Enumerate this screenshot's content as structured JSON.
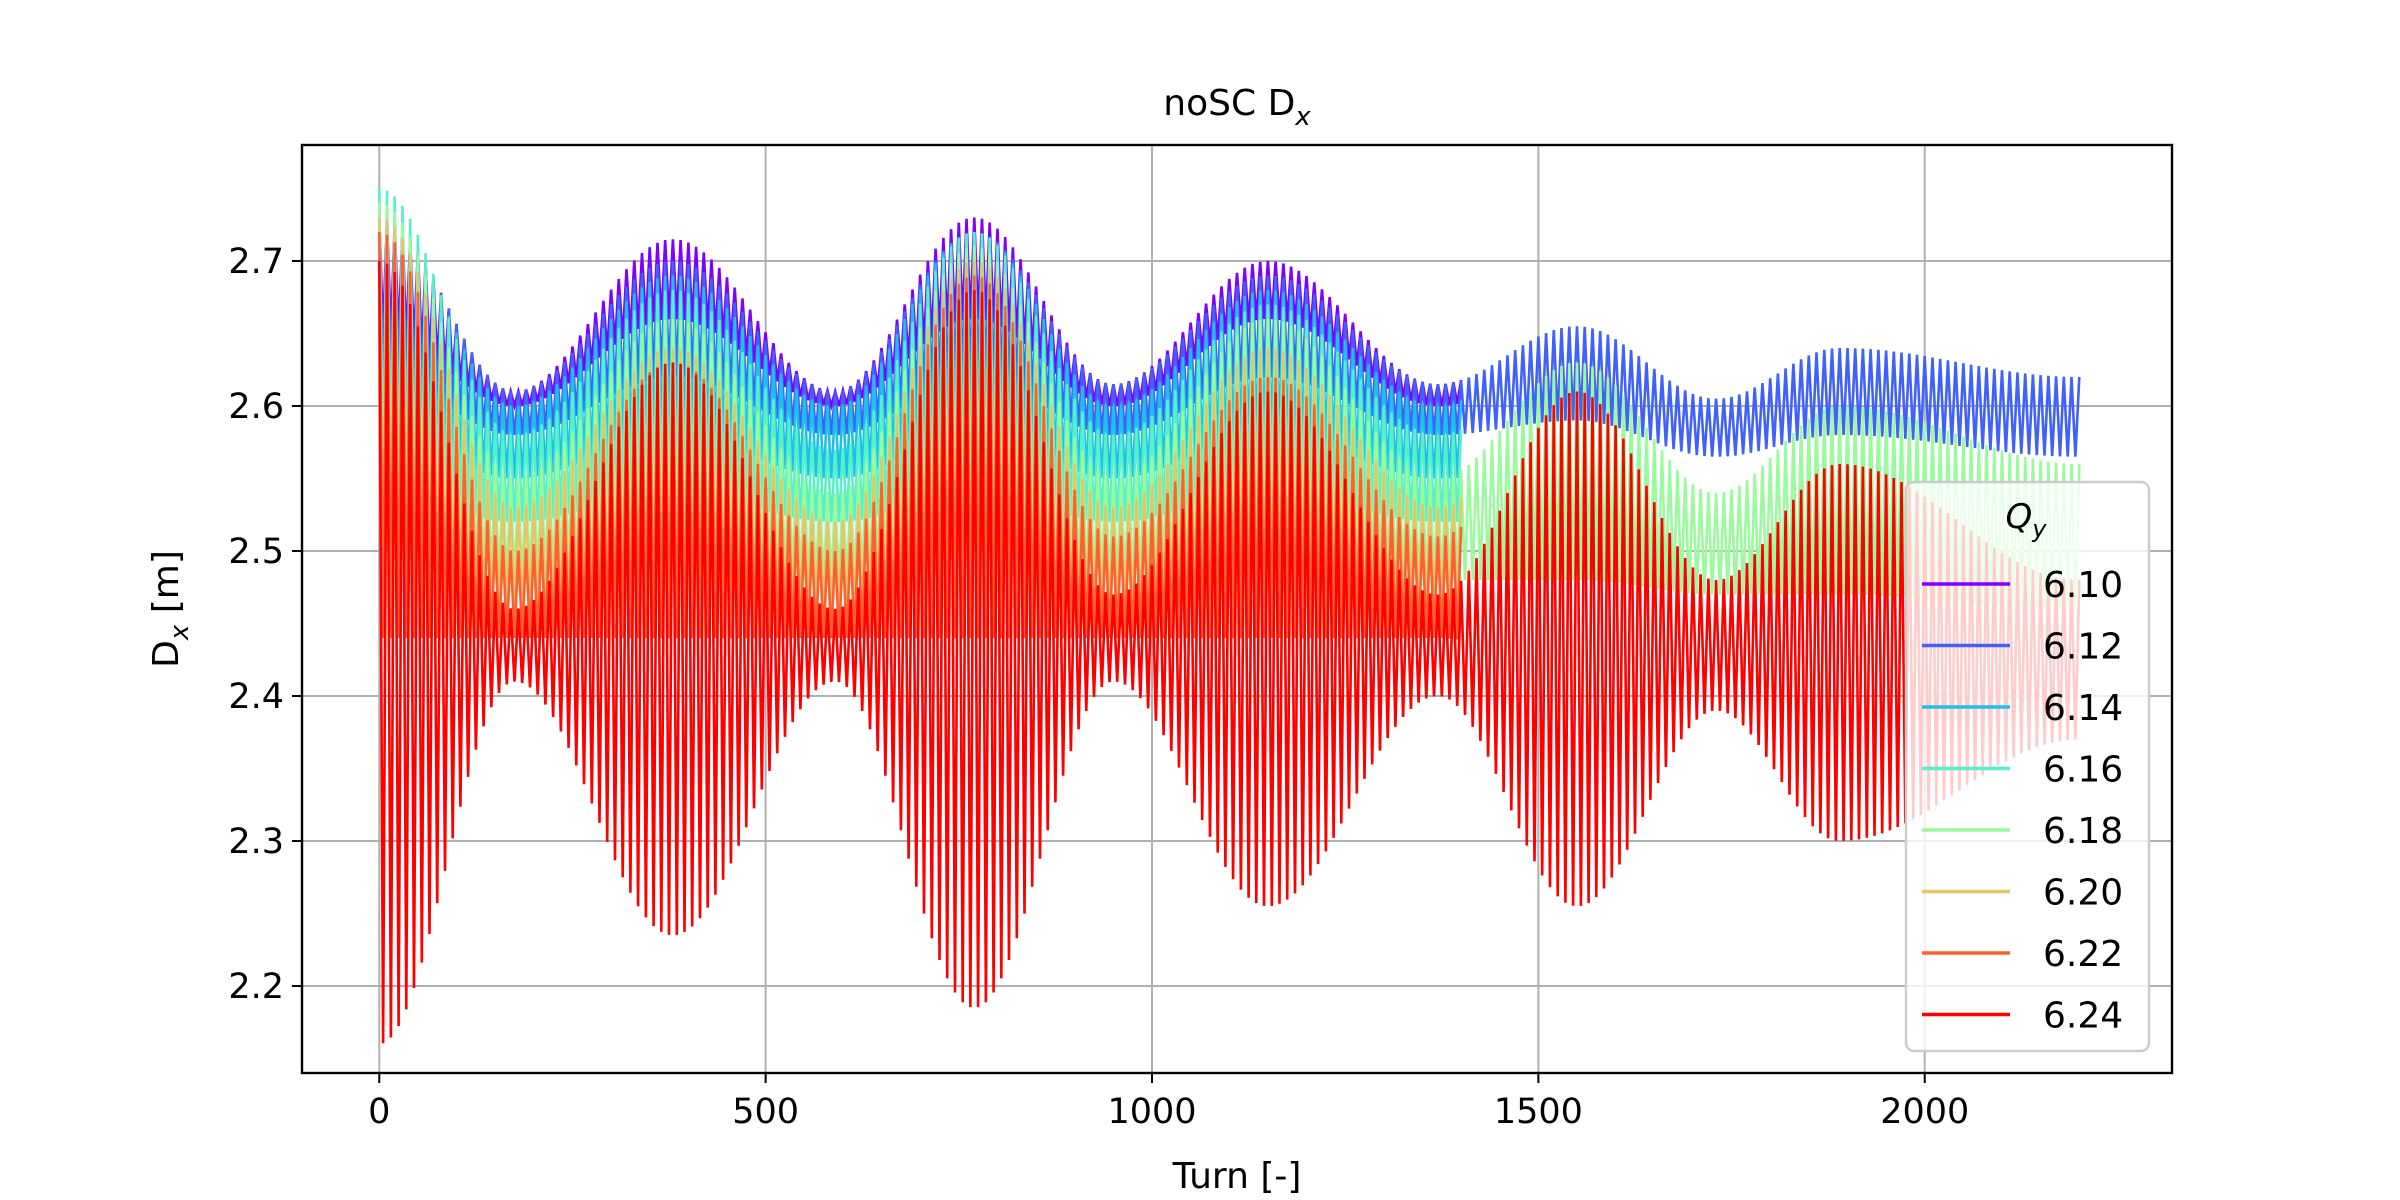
{
  "chart_data": {
    "type": "line",
    "title_main": "noSC D",
    "title_sub": "x",
    "xlabel": "Turn [-]",
    "ylabel_main": "D",
    "ylabel_sub": "x",
    "ylabel_unit": " [m]",
    "xlim": [
      -100,
      2320
    ],
    "ylim": [
      2.14,
      2.78
    ],
    "xticks": [
      0,
      500,
      1000,
      1500,
      2000
    ],
    "xtick_labels": [
      "0",
      "500",
      "1000",
      "1500",
      "2000"
    ],
    "yticks": [
      2.2,
      2.3,
      2.4,
      2.5,
      2.6,
      2.7
    ],
    "ytick_labels": [
      "2.2",
      "2.3",
      "2.4",
      "2.5",
      "2.6",
      "2.7"
    ],
    "grid": true,
    "legend": {
      "title_main": "Q",
      "title_sub": "y",
      "placement": "lower-right"
    },
    "fast_oscillation_period_turns": 10,
    "slow_envelope": {
      "center_y": 2.45,
      "peaks_x": [
        0,
        380,
        770,
        1150,
        1550,
        1890
      ],
      "troughs_x": [
        175,
        590,
        950,
        1370,
        1730,
        2200
      ]
    },
    "series": [
      {
        "name": "6.10",
        "color": "#8000ff",
        "x_end": 1400,
        "upper_at_peaks": [
          2.73,
          2.715,
          2.73,
          2.7,
          2.66,
          2.64
        ],
        "upper_at_troughs": [
          2.61,
          2.61,
          2.615,
          2.615,
          2.605,
          2.6
        ],
        "lower_at_peaks": [
          2.65,
          2.66,
          2.66,
          2.66,
          2.63,
          2.62
        ],
        "lower_at_troughs": [
          2.6,
          2.6,
          2.6,
          2.6,
          2.59,
          2.59
        ]
      },
      {
        "name": "6.12",
        "color": "#4062fa",
        "x_end": 2200,
        "upper_at_peaks": [
          2.73,
          2.7,
          2.72,
          2.69,
          2.655,
          2.64
        ],
        "upper_at_troughs": [
          2.61,
          2.61,
          2.615,
          2.615,
          2.605,
          2.62
        ],
        "lower_at_peaks": [
          2.62,
          2.62,
          2.62,
          2.62,
          2.59,
          2.58
        ],
        "lower_at_troughs": [
          2.58,
          2.58,
          2.58,
          2.58,
          2.565,
          2.565
        ]
      },
      {
        "name": "6.14",
        "color": "#1dc0ea",
        "x_end": 1400,
        "upper_at_peaks": [
          2.73,
          2.69,
          2.72,
          2.68,
          2.65,
          2.63
        ],
        "upper_at_troughs": [
          2.6,
          2.6,
          2.6,
          2.6,
          2.59,
          2.58
        ],
        "lower_at_peaks": [
          2.58,
          2.58,
          2.58,
          2.58,
          2.56,
          2.55
        ],
        "lower_at_troughs": [
          2.55,
          2.55,
          2.55,
          2.55,
          2.54,
          2.53
        ]
      },
      {
        "name": "6.16",
        "color": "#57f0c9",
        "x_end": 1400,
        "upper_at_peaks": [
          2.75,
          2.68,
          2.72,
          2.67,
          2.64,
          2.62
        ],
        "upper_at_troughs": [
          2.58,
          2.57,
          2.58,
          2.58,
          2.56,
          2.55
        ],
        "lower_at_peaks": [
          2.54,
          2.54,
          2.54,
          2.54,
          2.52,
          2.51
        ],
        "lower_at_troughs": [
          2.52,
          2.52,
          2.52,
          2.52,
          2.5,
          2.49
        ]
      },
      {
        "name": "6.18",
        "color": "#9cfa9e",
        "x_end": 2200,
        "upper_at_peaks": [
          2.74,
          2.66,
          2.71,
          2.66,
          2.63,
          2.6
        ],
        "upper_at_troughs": [
          2.55,
          2.54,
          2.55,
          2.55,
          2.54,
          2.56
        ],
        "lower_at_peaks": [
          2.5,
          2.5,
          2.5,
          2.5,
          2.48,
          2.47
        ],
        "lower_at_troughs": [
          2.48,
          2.48,
          2.48,
          2.48,
          2.47,
          2.46
        ]
      },
      {
        "name": "6.20",
        "color": "#e2c66b",
        "x_end": 1400,
        "upper_at_peaks": [
          2.73,
          2.64,
          2.7,
          2.64,
          2.62,
          2.59
        ],
        "upper_at_troughs": [
          2.53,
          2.52,
          2.53,
          2.53,
          2.51,
          2.5
        ],
        "lower_at_peaks": [
          2.47,
          2.47,
          2.47,
          2.47,
          2.45,
          2.44
        ],
        "lower_at_troughs": [
          2.46,
          2.46,
          2.46,
          2.46,
          2.44,
          2.43
        ]
      },
      {
        "name": "6.22",
        "color": "#ff6030",
        "x_end": 1400,
        "upper_at_peaks": [
          2.72,
          2.63,
          2.69,
          2.62,
          2.61,
          2.58
        ],
        "upper_at_troughs": [
          2.5,
          2.5,
          2.51,
          2.51,
          2.49,
          2.48
        ],
        "lower_at_peaks": [
          2.44,
          2.44,
          2.44,
          2.44,
          2.42,
          2.41
        ],
        "lower_at_troughs": [
          2.44,
          2.44,
          2.44,
          2.44,
          2.42,
          2.41
        ]
      },
      {
        "name": "6.24",
        "color": "#ff0000",
        "x_end": 2200,
        "upper_at_peaks": [
          2.7,
          2.63,
          2.68,
          2.61,
          2.61,
          2.56
        ],
        "upper_at_troughs": [
          2.46,
          2.46,
          2.47,
          2.47,
          2.48,
          2.48
        ],
        "lower_at_peaks": [
          2.16,
          2.235,
          2.185,
          2.255,
          2.255,
          2.3
        ],
        "lower_at_troughs": [
          2.41,
          2.41,
          2.41,
          2.4,
          2.39,
          2.37
        ]
      }
    ]
  }
}
